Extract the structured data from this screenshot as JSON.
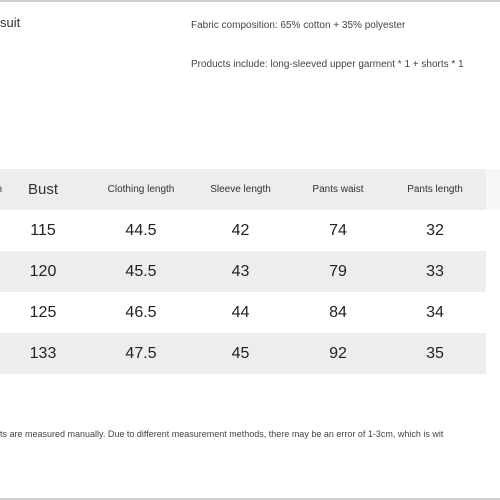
{
  "header": {
    "title_fragment": "suit",
    "fabric_composition": "Fabric composition: 65% cotton + 35% polyester",
    "products_include": "Products include: long-sleeved upper garment * 1 + shorts * 1"
  },
  "size_table": {
    "unit_fragment": "/cm",
    "columns": [
      "Bust",
      "Clothing length",
      "Sleeve length",
      "Pants waist",
      "Pants length"
    ],
    "rows": [
      [
        "115",
        "44.5",
        "42",
        "74",
        "32"
      ],
      [
        "120",
        "45.5",
        "43",
        "79",
        "33"
      ],
      [
        "125",
        "46.5",
        "44",
        "84",
        "34"
      ],
      [
        "133",
        "47.5",
        "45",
        "92",
        "35"
      ]
    ]
  },
  "note": "ts are measured manually. Due to different measurement methods, there may be an error of 1-3cm, which is wit"
}
